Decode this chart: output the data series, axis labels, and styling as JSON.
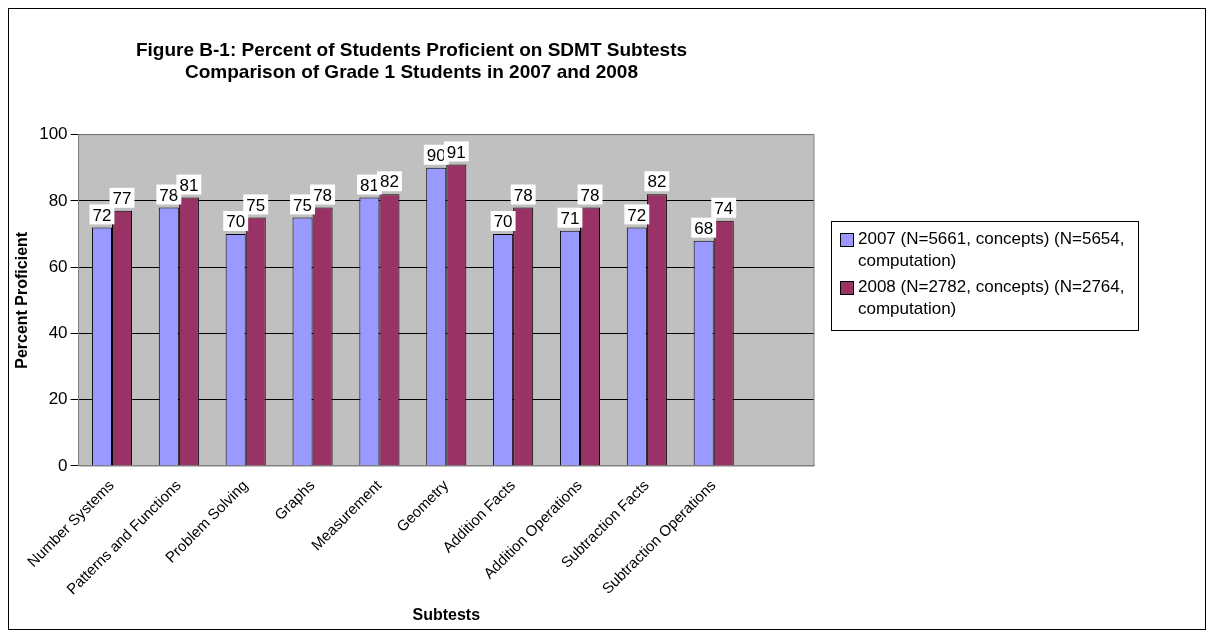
{
  "chart_data": {
    "type": "bar",
    "title": "Figure B-1: Percent of Students Proficient on SDMT Subtests",
    "subtitle": "Comparison of Grade 1 Students in 2007 and 2008",
    "xlabel": "Subtests",
    "ylabel": "Percent Proficient",
    "categories": [
      "Number Systems",
      "Patterns and Functions",
      "Problem Solving",
      "Graphs",
      "Measurement",
      "Geometry",
      "Addition Facts",
      "Addition Operations",
      "Subtraction Facts",
      "Subtraction Operations",
      null
    ],
    "series": [
      {
        "name": "2007 (N=5661, concepts) (N=5654, computation)",
        "color": "#9999ff",
        "values": [
          72,
          78,
          70,
          75,
          81,
          90,
          70,
          71,
          72,
          68,
          null
        ]
      },
      {
        "name": "2008 (N=2782, concepts) (N=2764, computation)",
        "color": "#993366",
        "values": [
          77,
          81,
          75,
          78,
          82,
          91,
          78,
          78,
          82,
          74,
          null
        ]
      }
    ],
    "ylim": [
      0,
      100
    ],
    "yticks": [
      0,
      20,
      40,
      60,
      80,
      100
    ],
    "grid": "y",
    "legend": "right",
    "data_labels": true
  }
}
